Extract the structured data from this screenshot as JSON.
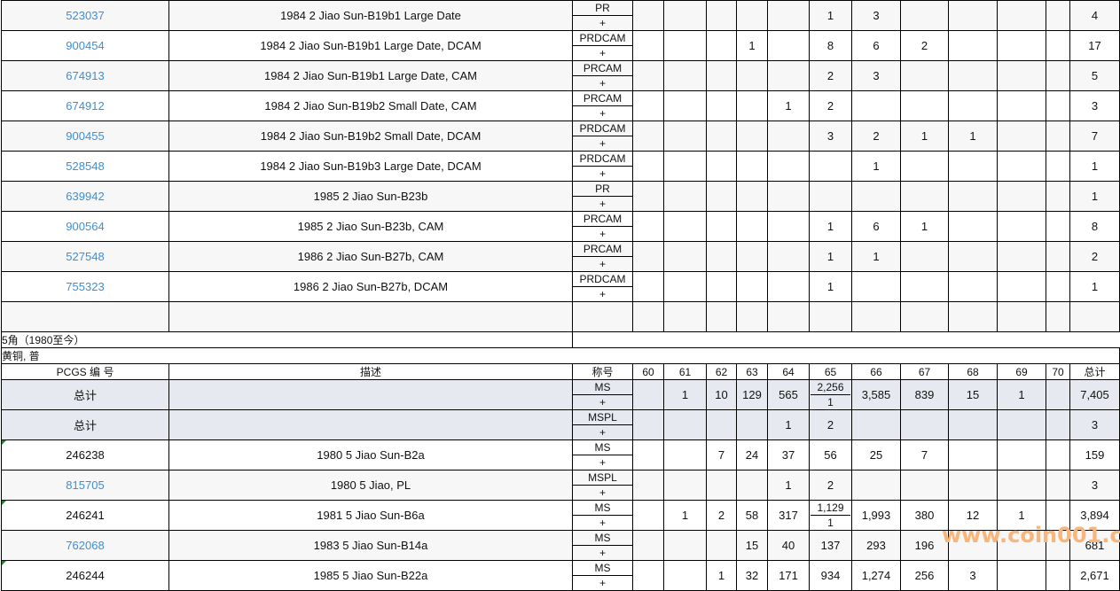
{
  "top_rows": [
    {
      "id": "523037",
      "link": true,
      "desc": "1984 2 Jiao Sun-B19b1 Large Date",
      "title": "PR",
      "plus": "+",
      "grades": [
        "",
        "",
        "",
        "",
        "",
        "1",
        "3",
        "",
        "",
        "",
        ""
      ],
      "total": "4"
    },
    {
      "id": "900454",
      "link": true,
      "desc": "1984 2 Jiao Sun-B19b1 Large Date, DCAM",
      "title": "PRDCAM",
      "plus": "+",
      "grades": [
        "",
        "",
        "",
        "1",
        "",
        "8",
        "6",
        "2",
        "",
        "",
        ""
      ],
      "total": "17"
    },
    {
      "id": "674913",
      "link": true,
      "desc": "1984 2 Jiao Sun-B19b1 Large Date, CAM",
      "title": "PRCAM",
      "plus": "+",
      "grades": [
        "",
        "",
        "",
        "",
        "",
        "2",
        "3",
        "",
        "",
        "",
        ""
      ],
      "total": "5"
    },
    {
      "id": "674912",
      "link": true,
      "desc": "1984 2 Jiao Sun-B19b2 Small Date, CAM",
      "title": "PRCAM",
      "plus": "+",
      "grades": [
        "",
        "",
        "",
        "",
        "1",
        "2",
        "",
        "",
        "",
        "",
        ""
      ],
      "total": "3"
    },
    {
      "id": "900455",
      "link": true,
      "desc": "1984 2 Jiao Sun-B19b2 Small Date, DCAM",
      "title": "PRDCAM",
      "plus": "+",
      "grades": [
        "",
        "",
        "",
        "",
        "",
        "3",
        "2",
        "1",
        "1",
        "",
        ""
      ],
      "total": "7"
    },
    {
      "id": "528548",
      "link": true,
      "desc": "1984 2 Jiao Sun-B19b3 Large Date, DCAM",
      "title": "PRDCAM",
      "plus": "+",
      "grades": [
        "",
        "",
        "",
        "",
        "",
        "",
        "1",
        "",
        "",
        "",
        ""
      ],
      "total": "1"
    },
    {
      "id": "639942",
      "link": true,
      "desc": "1985 2 Jiao Sun-B23b",
      "title": "PR",
      "plus": "+",
      "grades": [
        "",
        "",
        "",
        "",
        "",
        "",
        "",
        "",
        "",
        "",
        ""
      ],
      "total": "1"
    },
    {
      "id": "900564",
      "link": true,
      "desc": "1985 2 Jiao Sun-B23b, CAM",
      "title": "PRCAM",
      "plus": "+",
      "grades": [
        "",
        "",
        "",
        "",
        "",
        "1",
        "6",
        "1",
        "",
        "",
        ""
      ],
      "total": "8"
    },
    {
      "id": "527548",
      "link": true,
      "desc": "1986 2 Jiao Sun-B27b, CAM",
      "title": "PRCAM",
      "plus": "+",
      "grades": [
        "",
        "",
        "",
        "",
        "",
        "1",
        "1",
        "",
        "",
        "",
        ""
      ],
      "total": "2"
    },
    {
      "id": "755323",
      "link": true,
      "desc": "1986 2 Jiao Sun-B27b, DCAM",
      "title": "PRDCAM",
      "plus": "+",
      "grades": [
        "",
        "",
        "",
        "",
        "",
        "1",
        "",
        "",
        "",
        "",
        ""
      ],
      "total": "1"
    }
  ],
  "section_title": "5角（1980至今）",
  "section_subtitle": "黄铜, 普",
  "header": {
    "id": "PCGS 编 号",
    "desc": "描述",
    "title": "称号",
    "grades": [
      "60",
      "61",
      "62",
      "63",
      "64",
      "65",
      "66",
      "67",
      "68",
      "69",
      "70"
    ],
    "total": "总计"
  },
  "bottom_rows": [
    {
      "id": "总计",
      "total_row": true,
      "desc": "",
      "title": "MS",
      "plus": "+",
      "grades": [
        "",
        "1",
        "10",
        "129",
        "565",
        "2,256",
        "3,585",
        "839",
        "15",
        "1",
        ""
      ],
      "plus_grades": {
        "5": "1"
      },
      "total": "7,405"
    },
    {
      "id": "总计",
      "total_row": true,
      "desc": "",
      "title": "MSPL",
      "plus": "+",
      "grades": [
        "",
        "",
        "",
        "",
        "1",
        "2",
        "",
        "",
        "",
        "",
        ""
      ],
      "total": "3"
    },
    {
      "id": "246238",
      "marker": true,
      "desc": "1980 5 Jiao Sun-B2a",
      "title": "MS",
      "plus": "+",
      "grades": [
        "",
        "",
        "7",
        "24",
        "37",
        "56",
        "25",
        "7",
        "",
        "",
        ""
      ],
      "total": "159"
    },
    {
      "id": "815705",
      "link": true,
      "desc": "1980 5 Jiao, PL",
      "title": "MSPL",
      "plus": "+",
      "grades": [
        "",
        "",
        "",
        "",
        "1",
        "2",
        "",
        "",
        "",
        "",
        ""
      ],
      "total": "3"
    },
    {
      "id": "246241",
      "marker": true,
      "desc": "1981 5 Jiao Sun-B6a",
      "title": "MS",
      "plus": "+",
      "grades": [
        "",
        "1",
        "2",
        "58",
        "317",
        "1,129",
        "1,993",
        "380",
        "12",
        "1",
        ""
      ],
      "plus_grades": {
        "5": "1"
      },
      "total": "3,894"
    },
    {
      "id": "762068",
      "link": true,
      "desc": "1983 5 Jiao Sun-B14a",
      "title": "MS",
      "plus": "+",
      "grades": [
        "",
        "",
        "",
        "15",
        "40",
        "137",
        "293",
        "196",
        "",
        "",
        ""
      ],
      "total": "681"
    },
    {
      "id": "246244",
      "marker": true,
      "desc": "1985 5 Jiao Sun-B22a",
      "title": "MS",
      "plus": "+",
      "grades": [
        "",
        "",
        "1",
        "32",
        "171",
        "934",
        "1,274",
        "256",
        "3",
        "",
        ""
      ],
      "total": "2,671"
    }
  ],
  "watermark": "www.coin001.com",
  "colors": {
    "link": "#3b8fd9",
    "total_row_bg": "#e6eaf0",
    "watermark": "#f7a560"
  }
}
